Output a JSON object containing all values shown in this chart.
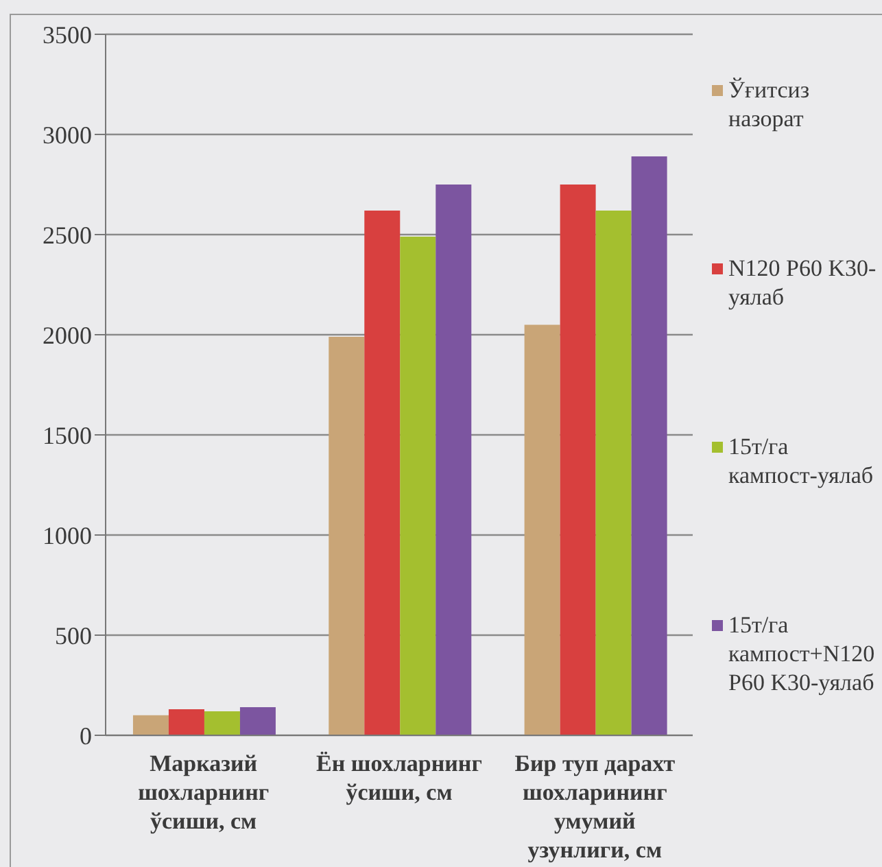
{
  "chart_data": {
    "type": "bar",
    "categories": [
      "Марказий шохларнинг ўсиши, см",
      "Ён шохларнинг ўсиши, см",
      "Бир туп дарахт шохларининг умумий узунлиги, см"
    ],
    "series": [
      {
        "name": "Ўғитсиз назорат",
        "color": "#c9a577",
        "values": [
          100,
          1990,
          2050
        ]
      },
      {
        "name": "N120 P60 K30-уялаб",
        "color": "#d8403f",
        "values": [
          130,
          2620,
          2750
        ]
      },
      {
        "name": "15т/га кампост-уялаб",
        "color": "#a4bf2f",
        "values": [
          120,
          2490,
          2620
        ]
      },
      {
        "name": "15т/га кампост+N120 P60 K30-уялаб",
        "color": "#7c55a0",
        "values": [
          140,
          2750,
          2890
        ]
      }
    ],
    "ylim": [
      0,
      3500
    ],
    "yticks": [
      0,
      500,
      1000,
      1500,
      2000,
      2500,
      3000,
      3500
    ],
    "grid": "y",
    "legend": "right"
  }
}
